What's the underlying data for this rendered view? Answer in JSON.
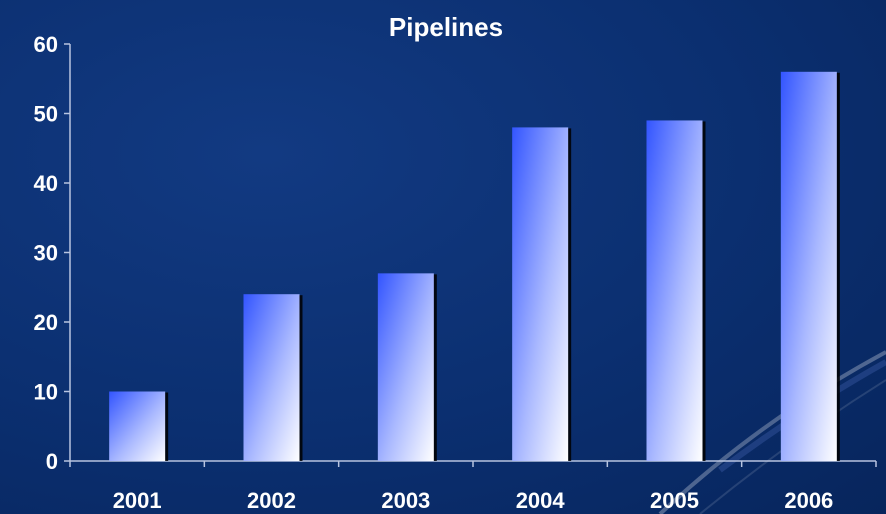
{
  "colors": {
    "background": "#0b2f70",
    "bar_top": "#3355ff",
    "bar_bottom": "#ffffff",
    "text": "#ffffff",
    "axis": "#b8c4e0"
  },
  "chart_data": {
    "type": "bar",
    "title": "Pipelines",
    "xlabel": "",
    "ylabel": "",
    "categories": [
      "2001",
      "2002",
      "2003",
      "2004",
      "2005",
      "2006"
    ],
    "values": [
      10,
      24,
      27,
      48,
      49,
      56
    ],
    "ylim": [
      0,
      60
    ],
    "yticks": [
      "0",
      "10",
      "20",
      "30",
      "40",
      "50",
      "60"
    ],
    "grid": false,
    "legend": "none"
  }
}
